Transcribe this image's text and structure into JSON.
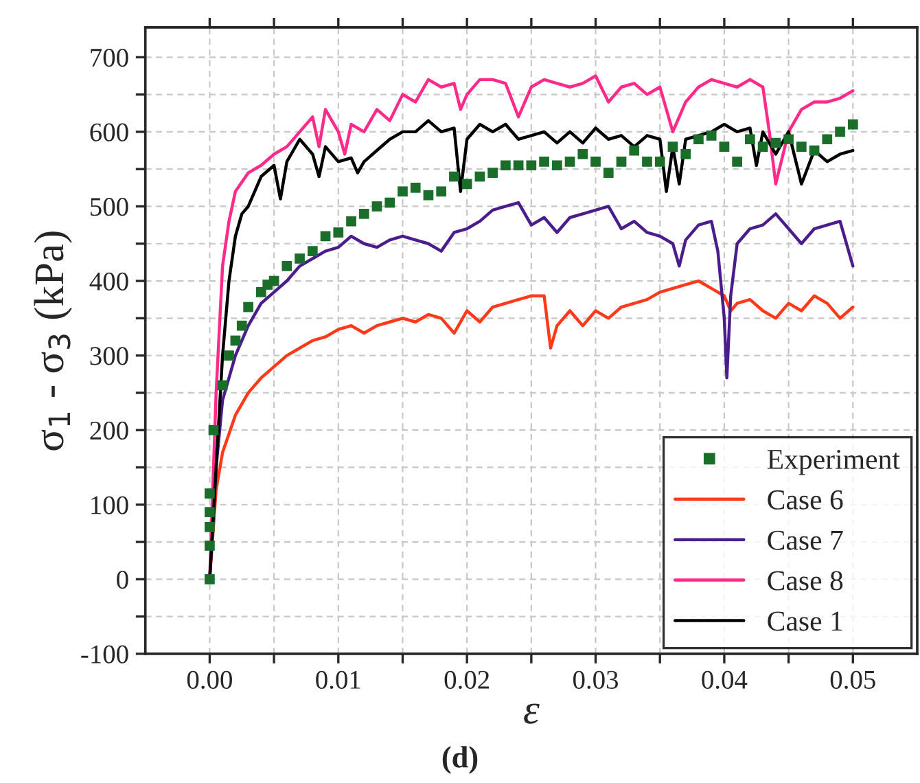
{
  "chart_data": {
    "type": "line",
    "xlabel": "ε",
    "ylabel": "σ$_{1}$ - σ$_{3}$ (kPa)",
    "annotations": [
      "(d)"
    ],
    "xlim": [
      -0.005,
      0.055
    ],
    "ylim": [
      -100,
      740
    ],
    "xticks": [
      {
        "value": 0,
        "label": "0.00"
      },
      {
        "value": 0.005,
        "label": null
      },
      {
        "value": 0.01,
        "label": "0.01"
      },
      {
        "value": 0.015,
        "label": null
      },
      {
        "value": 0.02,
        "label": "0.02"
      },
      {
        "value": 0.025,
        "label": null
      },
      {
        "value": 0.03,
        "label": "0.03"
      },
      {
        "value": 0.035,
        "label": null
      },
      {
        "value": 0.04,
        "label": "0.04"
      },
      {
        "value": 0.045,
        "label": null
      },
      {
        "value": 0.05,
        "label": "0.05"
      }
    ],
    "yticks": [
      -100,
      {
        "value": -50,
        "label": null
      },
      0,
      {
        "value": 50,
        "label": null
      },
      100,
      {
        "value": 150,
        "label": null
      },
      200,
      {
        "value": 250,
        "label": null
      },
      300,
      {
        "value": 350,
        "label": null
      },
      400,
      {
        "value": 450,
        "label": null
      },
      500,
      {
        "value": 550,
        "label": null
      },
      600,
      {
        "value": 650,
        "label": null
      },
      700
    ],
    "grid": true,
    "legend": "bottom right",
    "series": [
      {
        "name": "Experiment",
        "type": "scatter",
        "marker": "square",
        "color": "#1a6e2a",
        "x": [
          0,
          0,
          0,
          0,
          0,
          0.0003,
          0.001,
          0.0015,
          0.002,
          0.0025,
          0.003,
          0.004,
          0.0045,
          0.005,
          0.006,
          0.007,
          0.008,
          0.009,
          0.01,
          0.011,
          0.012,
          0.013,
          0.014,
          0.015,
          0.016,
          0.017,
          0.018,
          0.019,
          0.02,
          0.021,
          0.022,
          0.023,
          0.024,
          0.025,
          0.026,
          0.027,
          0.028,
          0.029,
          0.03,
          0.031,
          0.032,
          0.033,
          0.034,
          0.035,
          0.036,
          0.037,
          0.038,
          0.039,
          0.04,
          0.041,
          0.042,
          0.043,
          0.044,
          0.045,
          0.046,
          0.047,
          0.048,
          0.049,
          0.05
        ],
        "values": [
          0,
          45,
          70,
          90,
          115,
          200,
          260,
          300,
          320,
          340,
          365,
          385,
          395,
          400,
          420,
          430,
          440,
          460,
          465,
          480,
          490,
          500,
          505,
          520,
          525,
          515,
          520,
          540,
          530,
          540,
          545,
          555,
          555,
          555,
          560,
          555,
          560,
          570,
          560,
          545,
          560,
          575,
          560,
          560,
          580,
          570,
          590,
          595,
          580,
          560,
          590,
          580,
          585,
          590,
          580,
          575,
          590,
          600,
          610
        ]
      },
      {
        "name": "Case 6",
        "color": "#ff3a1a",
        "x": [
          0,
          0.0005,
          0.001,
          0.002,
          0.003,
          0.004,
          0.005,
          0.006,
          0.007,
          0.008,
          0.009,
          0.01,
          0.011,
          0.012,
          0.013,
          0.014,
          0.015,
          0.016,
          0.017,
          0.018,
          0.019,
          0.02,
          0.021,
          0.022,
          0.023,
          0.024,
          0.025,
          0.026,
          0.0265,
          0.027,
          0.028,
          0.029,
          0.03,
          0.031,
          0.032,
          0.033,
          0.034,
          0.035,
          0.036,
          0.037,
          0.038,
          0.039,
          0.04,
          0.0405,
          0.041,
          0.042,
          0.043,
          0.044,
          0.045,
          0.046,
          0.047,
          0.048,
          0.049,
          0.05
        ],
        "values": [
          0,
          120,
          170,
          220,
          250,
          270,
          285,
          300,
          310,
          320,
          325,
          335,
          340,
          330,
          340,
          345,
          350,
          345,
          355,
          350,
          330,
          360,
          345,
          365,
          370,
          375,
          380,
          380,
          310,
          340,
          360,
          340,
          360,
          350,
          365,
          370,
          375,
          385,
          390,
          395,
          400,
          390,
          380,
          360,
          370,
          375,
          360,
          350,
          370,
          360,
          380,
          370,
          350,
          365
        ]
      },
      {
        "name": "Case 7",
        "color": "#4b1d8c",
        "x": [
          0,
          0.0005,
          0.001,
          0.002,
          0.003,
          0.004,
          0.005,
          0.006,
          0.007,
          0.008,
          0.009,
          0.01,
          0.011,
          0.012,
          0.013,
          0.014,
          0.015,
          0.016,
          0.017,
          0.018,
          0.019,
          0.02,
          0.021,
          0.022,
          0.023,
          0.024,
          0.025,
          0.026,
          0.027,
          0.028,
          0.029,
          0.03,
          0.031,
          0.032,
          0.033,
          0.034,
          0.035,
          0.036,
          0.0365,
          0.037,
          0.038,
          0.039,
          0.0395,
          0.04,
          0.0402,
          0.0405,
          0.041,
          0.042,
          0.043,
          0.044,
          0.045,
          0.046,
          0.047,
          0.048,
          0.049,
          0.05
        ],
        "values": [
          0,
          150,
          240,
          300,
          340,
          370,
          385,
          400,
          420,
          430,
          440,
          445,
          460,
          450,
          445,
          455,
          460,
          455,
          450,
          440,
          465,
          470,
          480,
          495,
          500,
          505,
          475,
          485,
          465,
          485,
          490,
          495,
          500,
          470,
          480,
          465,
          460,
          450,
          420,
          455,
          475,
          480,
          440,
          350,
          270,
          380,
          450,
          470,
          475,
          490,
          470,
          450,
          470,
          475,
          480,
          420
        ]
      },
      {
        "name": "Case 8",
        "color": "#ff2a8a",
        "x": [
          0,
          0.0005,
          0.001,
          0.0015,
          0.002,
          0.003,
          0.004,
          0.005,
          0.006,
          0.007,
          0.008,
          0.0085,
          0.009,
          0.01,
          0.0105,
          0.011,
          0.012,
          0.013,
          0.014,
          0.015,
          0.016,
          0.017,
          0.018,
          0.019,
          0.0195,
          0.02,
          0.021,
          0.022,
          0.023,
          0.024,
          0.025,
          0.026,
          0.027,
          0.028,
          0.029,
          0.03,
          0.031,
          0.032,
          0.033,
          0.034,
          0.035,
          0.036,
          0.037,
          0.038,
          0.039,
          0.04,
          0.041,
          0.042,
          0.043,
          0.0435,
          0.044,
          0.045,
          0.046,
          0.047,
          0.048,
          0.049,
          0.05
        ],
        "values": [
          0,
          250,
          420,
          480,
          520,
          545,
          555,
          570,
          580,
          600,
          620,
          580,
          630,
          600,
          570,
          610,
          600,
          630,
          615,
          650,
          640,
          670,
          660,
          665,
          630,
          650,
          670,
          670,
          665,
          620,
          660,
          670,
          665,
          660,
          665,
          675,
          640,
          660,
          665,
          650,
          660,
          600,
          640,
          660,
          670,
          665,
          660,
          670,
          660,
          600,
          530,
          600,
          630,
          640,
          640,
          645,
          655
        ]
      },
      {
        "name": "Case 1",
        "color": "#000000",
        "x": [
          0,
          0.0005,
          0.001,
          0.0015,
          0.002,
          0.0025,
          0.003,
          0.004,
          0.005,
          0.0055,
          0.006,
          0.007,
          0.008,
          0.0085,
          0.009,
          0.01,
          0.011,
          0.0115,
          0.012,
          0.013,
          0.014,
          0.015,
          0.016,
          0.017,
          0.018,
          0.019,
          0.0195,
          0.02,
          0.021,
          0.022,
          0.023,
          0.024,
          0.025,
          0.026,
          0.027,
          0.028,
          0.029,
          0.03,
          0.031,
          0.032,
          0.033,
          0.034,
          0.035,
          0.0355,
          0.036,
          0.0365,
          0.037,
          0.038,
          0.039,
          0.04,
          0.041,
          0.042,
          0.0425,
          0.043,
          0.044,
          0.045,
          0.046,
          0.047,
          0.048,
          0.049,
          0.05
        ],
        "values": [
          0,
          150,
          300,
          400,
          460,
          490,
          500,
          540,
          555,
          510,
          560,
          590,
          570,
          540,
          580,
          560,
          565,
          545,
          560,
          575,
          590,
          600,
          600,
          615,
          600,
          605,
          520,
          590,
          610,
          600,
          610,
          590,
          595,
          600,
          585,
          600,
          585,
          605,
          590,
          595,
          580,
          595,
          590,
          520,
          580,
          530,
          590,
          595,
          600,
          610,
          600,
          605,
          555,
          600,
          570,
          600,
          530,
          575,
          560,
          570,
          575
        ]
      }
    ]
  }
}
